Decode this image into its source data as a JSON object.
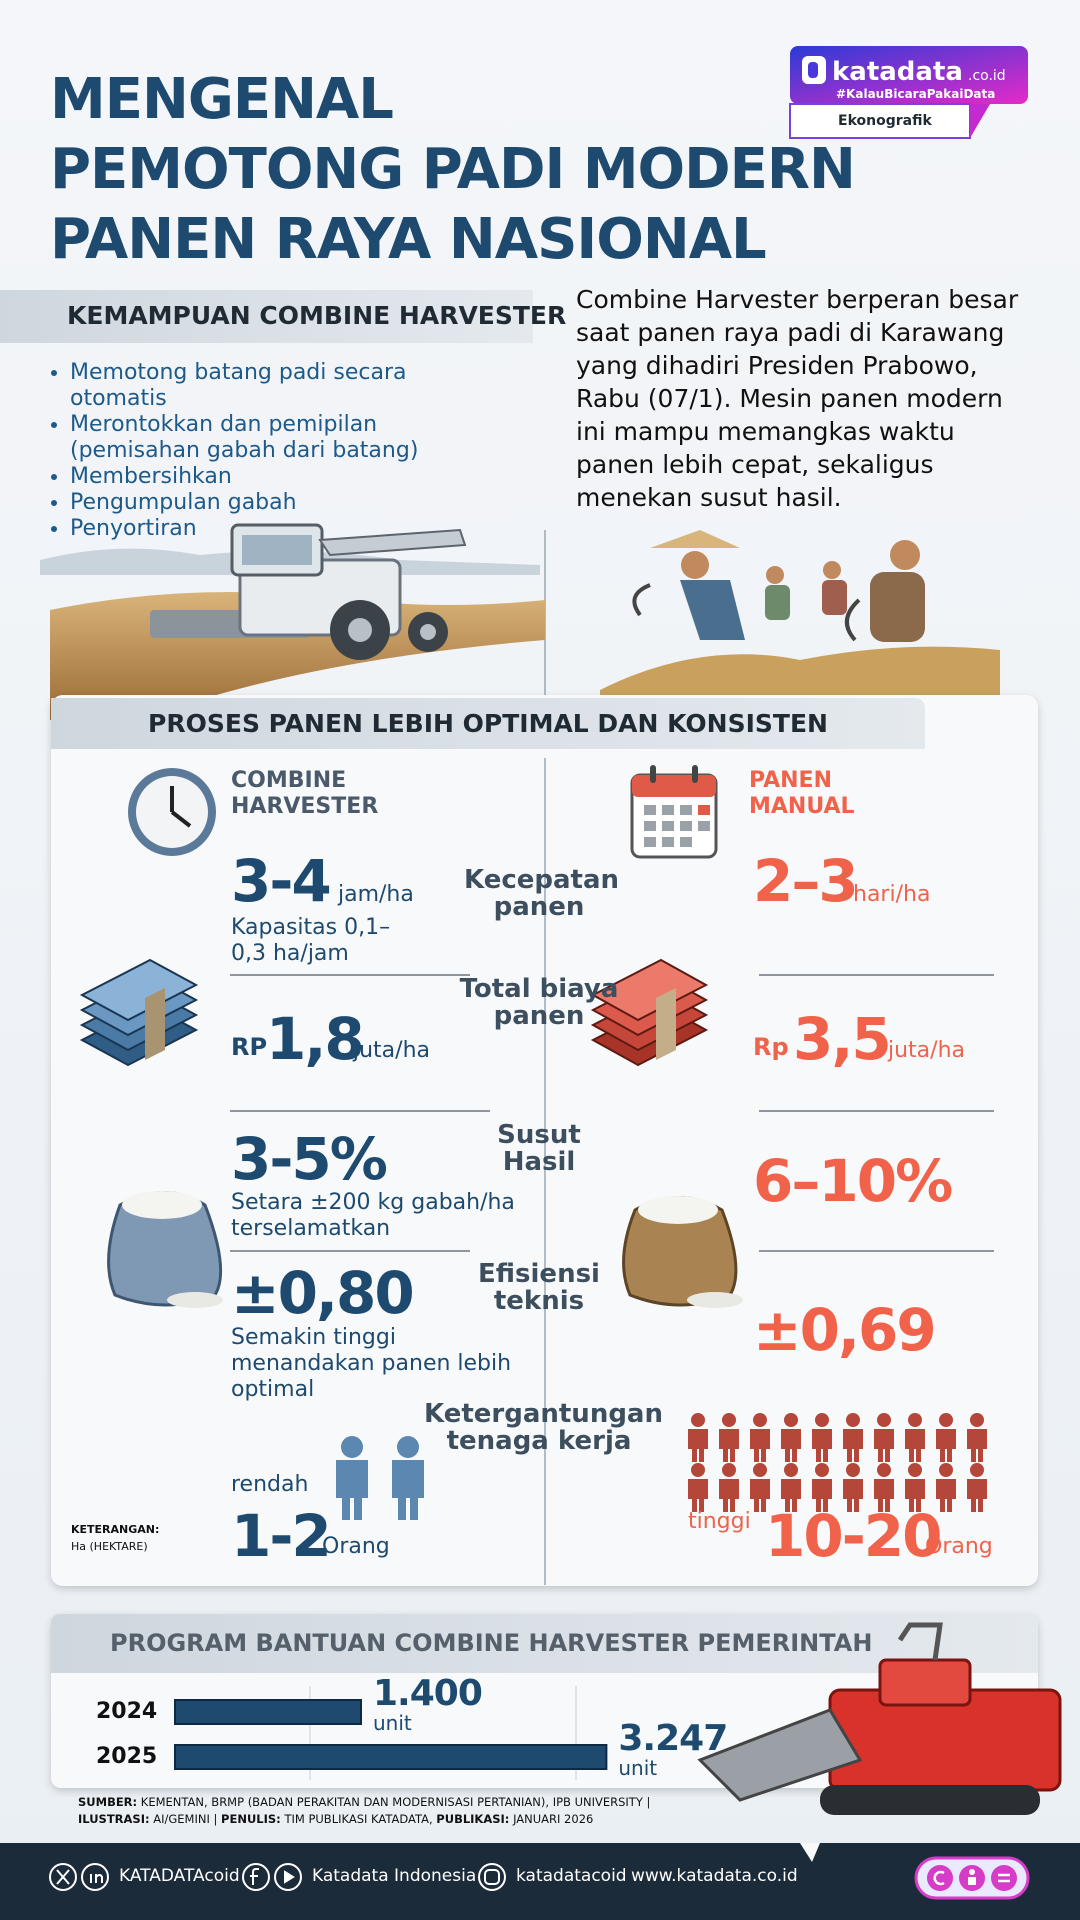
{
  "header": {
    "title_lines": [
      "MENGENAL",
      "PEMOTONG PADI MODERN",
      "PANEN RAYA NASIONAL"
    ],
    "logo": "katadata",
    "logo_domain": ".co.id",
    "hashtag": "#KalauBicaraPakaiData",
    "badge": "Ekonografik"
  },
  "capabilities": {
    "heading": "KEMAMPUAN COMBINE HARVESTER",
    "items": [
      "Memotong batang padi secara otomatis",
      "Merontokkan dan pemipilan (pemisahan gabah dari batang)",
      "Membersihkan",
      "Pengumpulan gabah",
      "Penyortiran"
    ]
  },
  "intro": "Combine Harvester berperan besar saat panen raya padi di Karawang yang dihadiri Presiden Prabowo, Rabu (07/1).  Mesin panen modern ini mampu memangkas waktu panen lebih cepat, sekaligus menekan susut hasil.",
  "comparison": {
    "heading": "PROSES PANEN LEBIH OPTIMAL DAN KONSISTEN",
    "left_title": "COMBINE HARVESTER",
    "right_title": "PANEN MANUAL",
    "rows": [
      {
        "label": "Kecepatan panen",
        "left": {
          "value": "3-4",
          "unit": "jam/ha",
          "note": "Kapasitas 0,1–0,3 ha/jam"
        },
        "right": {
          "value": "2–3",
          "unit": "hari/ha"
        }
      },
      {
        "label": "Total biaya panen",
        "left": {
          "prefix": "RP",
          "value": "1,8",
          "unit": "juta/ha"
        },
        "right": {
          "prefix": "Rp",
          "value": "3,5",
          "unit": "juta/ha"
        }
      },
      {
        "label": "Susut Hasil",
        "left": {
          "value": "3-5%",
          "note": "Setara ±200 kg gabah/ha terselamatkan"
        },
        "right": {
          "value": "6–10%"
        }
      },
      {
        "label": "Efisiensi teknis",
        "left": {
          "value": "±0,80",
          "note": "Semakin tinggi menandakan panen lebih optimal"
        },
        "right": {
          "value": "±0,69"
        }
      },
      {
        "label": "Ketergantungan tenaga kerja",
        "left": {
          "qualifier": "rendah",
          "value": "1-2",
          "unit": "Orang"
        },
        "right": {
          "qualifier": "tinggi",
          "value": "10-20",
          "unit": "Orang"
        }
      }
    ],
    "note_label": "KETERANGAN:",
    "note_text": "Ha (HEKTARE)"
  },
  "program": {
    "heading": "PROGRAM BANTUAN COMBINE HARVESTER PEMERINTAH",
    "chart": {
      "type": "bar",
      "orientation": "horizontal",
      "categories": [
        "2024",
        "2025"
      ],
      "values": [
        1400,
        3247
      ],
      "value_labels": [
        "1.400",
        "3.247"
      ],
      "unit": "unit",
      "xlim": [
        0,
        3500
      ],
      "color": "#1d4a6e"
    }
  },
  "source": {
    "source_label": "SUMBER:",
    "source_text": "KEMENTAN, BRMP (BADAN PERAKITAN DAN MODERNISASI PERTANIAN), IPB UNIVERSITY |",
    "illustration_label": "ILUSTRASI:",
    "illustration_text": "AI/GEMINI |",
    "author_label": "PENULIS:",
    "author_text": "TIM PUBLIKASI KATADATA,",
    "published_label": "PUBLIKASI:",
    "published_text": "JANUARI 2026"
  },
  "footer": {
    "x_handle": "KATADATAcoid",
    "facebook": "Katadata Indonesia",
    "instagram": "katadatacoid",
    "website": "www.katadata.co.id"
  }
}
